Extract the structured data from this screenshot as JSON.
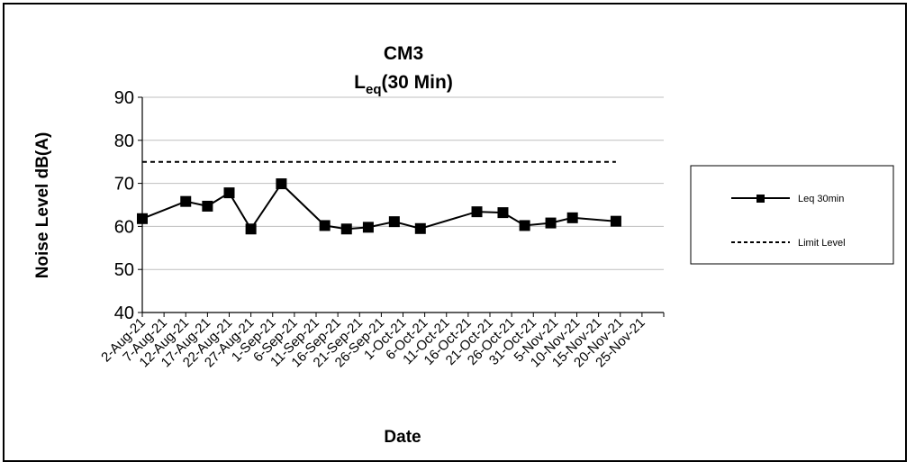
{
  "chart_data": {
    "type": "line",
    "title_line1": "CM3",
    "title_main": "L",
    "title_sub": "eq",
    "title_rest": "(30 Min)",
    "xlabel": "Date",
    "ylabel": "Noise Level dB(A)",
    "ylim": [
      40,
      90
    ],
    "yticks": [
      40,
      50,
      60,
      70,
      80,
      90
    ],
    "categories": [
      "2-Aug-21",
      "7-Aug-21",
      "12-Aug-21",
      "17-Aug-21",
      "22-Aug-21",
      "27-Aug-21",
      "1-Sep-21",
      "6-Sep-21",
      "11-Sep-21",
      "16-Sep-21",
      "21-Sep-21",
      "26-Sep-21",
      "1-Oct-21",
      "6-Oct-21",
      "11-Oct-21",
      "16-Oct-21",
      "21-Oct-21",
      "26-Oct-21",
      "31-Oct-21",
      "5-Nov-21",
      "10-Nov-21",
      "15-Nov-21",
      "20-Nov-21",
      "25-Nov-21"
    ],
    "x_start": "2021-08-02",
    "x_end": "2021-11-30",
    "grid": true,
    "legend_position": "right",
    "series": [
      {
        "name": "Leq 30min",
        "style": "solid-square-markers",
        "points": [
          {
            "date": "2021-08-02",
            "value": 61.8
          },
          {
            "date": "2021-08-12",
            "value": 65.8
          },
          {
            "date": "2021-08-17",
            "value": 64.7
          },
          {
            "date": "2021-08-22",
            "value": 67.8
          },
          {
            "date": "2021-08-27",
            "value": 59.4
          },
          {
            "date": "2021-09-03",
            "value": 69.9
          },
          {
            "date": "2021-09-13",
            "value": 60.2
          },
          {
            "date": "2021-09-18",
            "value": 59.4
          },
          {
            "date": "2021-09-23",
            "value": 59.8
          },
          {
            "date": "2021-09-29",
            "value": 61.1
          },
          {
            "date": "2021-10-05",
            "value": 59.5
          },
          {
            "date": "2021-10-18",
            "value": 63.4
          },
          {
            "date": "2021-10-24",
            "value": 63.2
          },
          {
            "date": "2021-10-29",
            "value": 60.2
          },
          {
            "date": "2021-11-04",
            "value": 60.8
          },
          {
            "date": "2021-11-09",
            "value": 62.0
          },
          {
            "date": "2021-11-19",
            "value": 61.2
          }
        ]
      },
      {
        "name": "Limit Level",
        "style": "dashed",
        "points": [
          {
            "date": "2021-08-02",
            "value": 75
          },
          {
            "date": "2021-11-19",
            "value": 75
          }
        ]
      }
    ],
    "colors": {
      "line": "#000000",
      "grid": "#bfbfbf"
    }
  }
}
